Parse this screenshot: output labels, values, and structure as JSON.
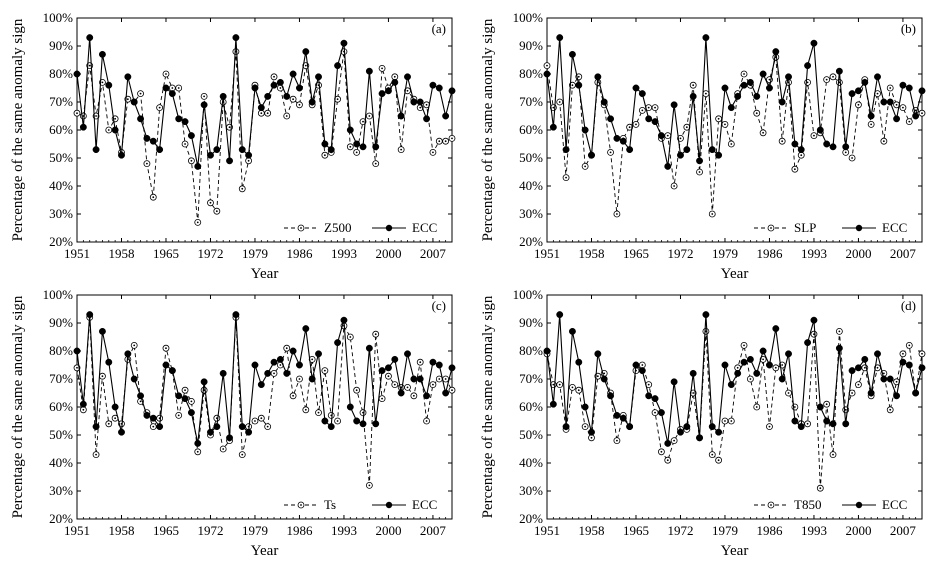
{
  "chart_data": [
    {
      "type": "line",
      "panel_label": "(a)",
      "xlabel": "Year",
      "ylabel": "Percentage of the same anomaly sign",
      "xlim": [
        1951,
        2010
      ],
      "ylim": [
        20,
        100
      ],
      "x_ticks": [
        "1951",
        "1958",
        "1965",
        "1972",
        "1979",
        "1986",
        "1993",
        "2000",
        "2007"
      ],
      "y_ticks": [
        "20%",
        "30%",
        "40%",
        "50%",
        "60%",
        "70%",
        "80%",
        "90%",
        "100%"
      ],
      "legend_position": "bottom-right",
      "grid": false,
      "x": [
        1951,
        1952,
        1953,
        1954,
        1955,
        1956,
        1957,
        1958,
        1959,
        1960,
        1961,
        1962,
        1963,
        1964,
        1965,
        1966,
        1967,
        1968,
        1969,
        1970,
        1971,
        1972,
        1973,
        1974,
        1975,
        1976,
        1977,
        1978,
        1979,
        1980,
        1981,
        1982,
        1983,
        1984,
        1985,
        1986,
        1987,
        1988,
        1989,
        1990,
        1991,
        1992,
        1993,
        1994,
        1995,
        1996,
        1997,
        1998,
        1999,
        2000,
        2001,
        2002,
        2003,
        2004,
        2005,
        2006,
        2007,
        2008,
        2009,
        2010
      ],
      "series": [
        {
          "name": "Z500",
          "style": "dashed-open",
          "values": [
            66,
            65,
            83,
            65,
            77,
            60,
            64,
            52,
            71,
            70,
            73,
            48,
            36,
            68,
            80,
            75,
            75,
            55,
            49,
            27,
            72,
            34,
            31,
            70,
            61,
            88,
            39,
            49,
            76,
            66,
            66,
            79,
            75,
            65,
            71,
            69,
            83,
            69,
            76,
            51,
            52,
            71,
            88,
            54,
            52,
            63,
            65,
            48,
            82,
            75,
            79,
            53,
            74,
            71,
            68,
            69,
            52,
            56,
            56,
            57
          ]
        },
        {
          "name": "ECC",
          "style": "solid-filled",
          "values": [
            80,
            61,
            93,
            53,
            87,
            76,
            60,
            51,
            79,
            70,
            64,
            57,
            56,
            53,
            75,
            73,
            64,
            63,
            58,
            47,
            69,
            51,
            53,
            72,
            49,
            93,
            53,
            51,
            75,
            68,
            72,
            76,
            77,
            72,
            80,
            75,
            88,
            70,
            79,
            55,
            53,
            83,
            91,
            60,
            55,
            54,
            81,
            54,
            73,
            74,
            77,
            65,
            79,
            70,
            70,
            64,
            76,
            75,
            65,
            74
          ]
        }
      ]
    },
    {
      "type": "line",
      "panel_label": "(b)",
      "xlabel": "Year",
      "ylabel": "Percentage of the same anomaly sign",
      "xlim": [
        1951,
        2010
      ],
      "ylim": [
        20,
        100
      ],
      "x_ticks": [
        "1951",
        "1958",
        "1965",
        "1972",
        "1979",
        "1986",
        "1993",
        "2000",
        "2007"
      ],
      "y_ticks": [
        "20%",
        "30%",
        "40%",
        "50%",
        "60%",
        "70%",
        "80%",
        "90%",
        "100%"
      ],
      "legend_position": "bottom-right",
      "grid": false,
      "x": [
        1951,
        1952,
        1953,
        1954,
        1955,
        1956,
        1957,
        1958,
        1959,
        1960,
        1961,
        1962,
        1963,
        1964,
        1965,
        1966,
        1967,
        1968,
        1969,
        1970,
        1971,
        1972,
        1973,
        1974,
        1975,
        1976,
        1977,
        1978,
        1979,
        1980,
        1981,
        1982,
        1983,
        1984,
        1985,
        1986,
        1987,
        1988,
        1989,
        1990,
        1991,
        1992,
        1993,
        1994,
        1995,
        1996,
        1997,
        1998,
        1999,
        2000,
        2001,
        2002,
        2003,
        2004,
        2005,
        2006,
        2007,
        2008,
        2009,
        2010
      ],
      "series": [
        {
          "name": "SLP",
          "style": "dashed-open",
          "values": [
            83,
            68,
            70,
            43,
            76,
            79,
            47,
            51,
            77,
            69,
            52,
            30,
            57,
            61,
            62,
            67,
            68,
            68,
            57,
            58,
            40,
            57,
            61,
            76,
            45,
            73,
            30,
            64,
            62,
            55,
            73,
            80,
            76,
            66,
            59,
            78,
            86,
            56,
            77,
            46,
            51,
            77,
            58,
            59,
            78,
            79,
            77,
            52,
            50,
            69,
            78,
            62,
            73,
            56,
            75,
            69,
            68,
            63,
            67,
            66
          ]
        },
        {
          "name": "ECC",
          "style": "solid-filled",
          "values": [
            80,
            61,
            93,
            53,
            87,
            76,
            60,
            51,
            79,
            70,
            64,
            57,
            56,
            53,
            75,
            73,
            64,
            63,
            58,
            47,
            69,
            51,
            53,
            72,
            49,
            93,
            53,
            51,
            75,
            68,
            72,
            76,
            77,
            72,
            80,
            75,
            88,
            70,
            79,
            55,
            53,
            83,
            91,
            60,
            55,
            54,
            81,
            54,
            73,
            74,
            77,
            65,
            79,
            70,
            70,
            64,
            76,
            75,
            65,
            74
          ]
        }
      ]
    },
    {
      "type": "line",
      "panel_label": "(c)",
      "xlabel": "Year",
      "ylabel": "Percentage of the same anomaly sign",
      "xlim": [
        1951,
        2010
      ],
      "ylim": [
        20,
        100
      ],
      "x_ticks": [
        "1951",
        "1958",
        "1965",
        "1972",
        "1979",
        "1986",
        "1993",
        "2000",
        "2007"
      ],
      "y_ticks": [
        "20%",
        "30%",
        "40%",
        "50%",
        "60%",
        "70%",
        "80%",
        "90%",
        "100%"
      ],
      "legend_position": "bottom-right",
      "grid": false,
      "x": [
        1951,
        1952,
        1953,
        1954,
        1955,
        1956,
        1957,
        1958,
        1959,
        1960,
        1961,
        1962,
        1963,
        1964,
        1965,
        1966,
        1967,
        1968,
        1969,
        1970,
        1971,
        1972,
        1973,
        1974,
        1975,
        1976,
        1977,
        1978,
        1979,
        1980,
        1981,
        1982,
        1983,
        1984,
        1985,
        1986,
        1987,
        1988,
        1989,
        1990,
        1991,
        1992,
        1993,
        1994,
        1995,
        1996,
        1997,
        1998,
        1999,
        2000,
        2001,
        2002,
        2003,
        2004,
        2005,
        2006,
        2007,
        2008,
        2009,
        2010
      ],
      "series": [
        {
          "name": "Ts",
          "style": "dashed-open",
          "values": [
            74,
            59,
            92,
            43,
            71,
            54,
            56,
            54,
            77,
            82,
            62,
            58,
            53,
            56,
            81,
            73,
            57,
            66,
            62,
            44,
            66,
            50,
            56,
            45,
            48,
            92,
            43,
            53,
            55,
            56,
            53,
            72,
            75,
            81,
            64,
            70,
            59,
            77,
            58,
            73,
            57,
            55,
            89,
            85,
            66,
            58,
            32,
            86,
            63,
            71,
            68,
            67,
            67,
            64,
            76,
            55,
            68,
            70,
            70,
            66
          ]
        },
        {
          "name": "ECC",
          "style": "solid-filled",
          "values": [
            80,
            61,
            93,
            53,
            87,
            76,
            60,
            51,
            79,
            70,
            64,
            57,
            56,
            53,
            75,
            73,
            64,
            63,
            58,
            47,
            69,
            51,
            53,
            72,
            49,
            93,
            53,
            51,
            75,
            68,
            72,
            76,
            77,
            72,
            80,
            75,
            88,
            70,
            79,
            55,
            53,
            83,
            91,
            60,
            55,
            54,
            81,
            54,
            73,
            74,
            77,
            65,
            79,
            70,
            70,
            64,
            76,
            75,
            65,
            74
          ]
        }
      ]
    },
    {
      "type": "line",
      "panel_label": "(d)",
      "xlabel": "Year",
      "ylabel": "Percentage of the same anomaly sign",
      "xlim": [
        1951,
        2010
      ],
      "ylim": [
        20,
        100
      ],
      "x_ticks": [
        "1951",
        "1958",
        "1965",
        "1972",
        "1979",
        "1986",
        "1993",
        "2000",
        "2007"
      ],
      "y_ticks": [
        "20%",
        "30%",
        "40%",
        "50%",
        "60%",
        "70%",
        "80%",
        "90%",
        "100%"
      ],
      "legend_position": "bottom-right",
      "grid": false,
      "x": [
        1951,
        1952,
        1953,
        1954,
        1955,
        1956,
        1957,
        1958,
        1959,
        1960,
        1961,
        1962,
        1963,
        1964,
        1965,
        1966,
        1967,
        1968,
        1969,
        1970,
        1971,
        1972,
        1973,
        1974,
        1975,
        1976,
        1977,
        1978,
        1979,
        1980,
        1981,
        1982,
        1983,
        1984,
        1985,
        1986,
        1987,
        1988,
        1989,
        1990,
        1991,
        1992,
        1993,
        1994,
        1995,
        1996,
        1997,
        1998,
        1999,
        2000,
        2001,
        2002,
        2003,
        2004,
        2005,
        2006,
        2007,
        2008,
        2009,
        2010
      ],
      "series": [
        {
          "name": "T850",
          "style": "dashed-open",
          "values": [
            79,
            68,
            68,
            52,
            67,
            66,
            53,
            49,
            71,
            72,
            65,
            48,
            57,
            53,
            73,
            75,
            68,
            58,
            44,
            41,
            48,
            52,
            52,
            65,
            49,
            87,
            43,
            41,
            55,
            55,
            74,
            82,
            70,
            60,
            77,
            53,
            74,
            75,
            65,
            60,
            54,
            54,
            86,
            31,
            61,
            43,
            87,
            59,
            65,
            68,
            74,
            64,
            74,
            72,
            59,
            69,
            79,
            82,
            65,
            79
          ]
        },
        {
          "name": "ECC",
          "style": "solid-filled",
          "values": [
            80,
            61,
            93,
            53,
            87,
            76,
            60,
            51,
            79,
            70,
            64,
            57,
            56,
            53,
            75,
            73,
            64,
            63,
            58,
            47,
            69,
            51,
            53,
            72,
            49,
            93,
            53,
            51,
            75,
            68,
            72,
            76,
            77,
            72,
            80,
            75,
            88,
            70,
            79,
            55,
            53,
            83,
            91,
            60,
            55,
            54,
            81,
            54,
            73,
            74,
            77,
            65,
            79,
            70,
            70,
            64,
            76,
            75,
            65,
            74
          ]
        }
      ]
    }
  ]
}
